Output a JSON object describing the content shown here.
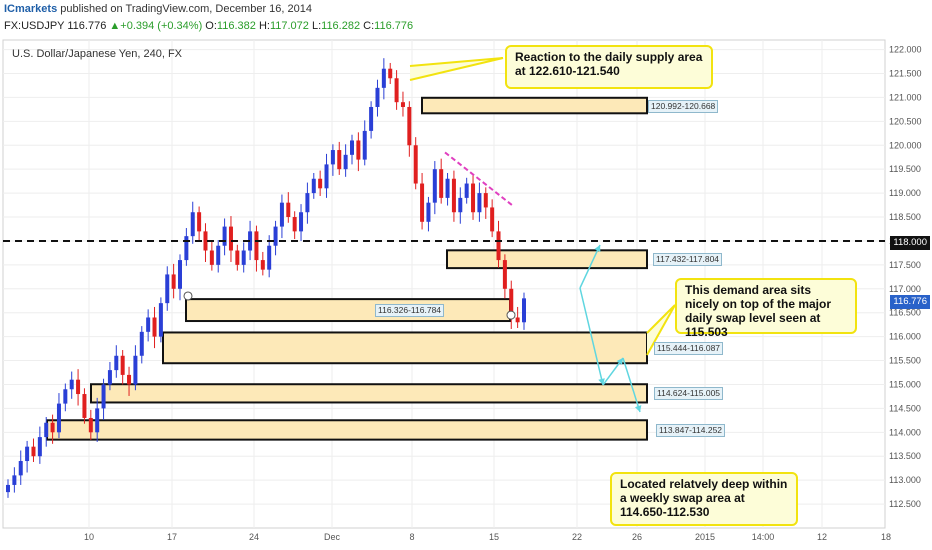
{
  "publisher": {
    "brand": "ICmarkets",
    "text": "published on TradingView.com, December 16, 2014"
  },
  "ohlc_line": {
    "symbol": "FX:USDJPY",
    "last": "116.776",
    "change": "+0.394 (+0.34%)",
    "open_label": "O:",
    "open": "116.382",
    "high_label": "H:",
    "high": "117.072",
    "low_label": "L:",
    "low": "116.282",
    "close_label": "C:",
    "close": "116.776"
  },
  "instrument_title": "U.S. Dollar/Japanese Yen, 240, FX",
  "colors": {
    "bull": "#2a3fd6",
    "bear": "#e01f1f",
    "zone_fill": "#fde9b8",
    "zone_border": "#111111",
    "callout_border": "#f2e30f",
    "arrow": "#5fd6e0",
    "trendline": "#e040c0",
    "grid": "#eeeeee"
  },
  "price_tags": {
    "swap_level": "118.000",
    "current": "116.776"
  },
  "callouts": {
    "supply": "Reaction to the daily supply area at 122.610-121.540",
    "demand": "This demand area sits nicely on top of the major daily swap level seen at 115.503",
    "weekly": "Located relatvely deep within a weekly swap area at 114.650-112.530"
  },
  "chart_data": {
    "type": "candlestick",
    "title": "U.S. Dollar/Japanese Yen, 240, FX",
    "ylim": [
      112.0,
      122.2
    ],
    "y_ticks": [
      "112.500",
      "113.000",
      "113.500",
      "114.000",
      "114.500",
      "115.000",
      "115.500",
      "116.000",
      "116.500",
      "117.000",
      "117.500",
      "118.000",
      "118.500",
      "119.000",
      "119.500",
      "120.000",
      "120.500",
      "121.000",
      "121.500",
      "122.000"
    ],
    "x_ticks": [
      "10",
      "17",
      "24",
      "Dec",
      "8",
      "15",
      "22",
      "26",
      "2015",
      "14:00",
      "12",
      "18"
    ],
    "horizontal_line": {
      "price": 118.0,
      "style": "dashed"
    },
    "zones": [
      {
        "label": "120.992-120.668",
        "low": 120.668,
        "high": 120.992
      },
      {
        "label": "117.432-117.804",
        "low": 117.432,
        "high": 117.804
      },
      {
        "label": "116.326-116.784",
        "low": 116.326,
        "high": 116.784
      },
      {
        "label": "115.444-116.087",
        "low": 115.444,
        "high": 116.087
      },
      {
        "label": "114.624-115.005",
        "low": 114.624,
        "high": 115.005
      },
      {
        "label": "113.847-114.252",
        "low": 113.847,
        "high": 114.252
      }
    ],
    "closes": [
      112.9,
      113.1,
      113.4,
      113.7,
      113.5,
      113.9,
      114.2,
      114.0,
      114.6,
      114.9,
      115.1,
      114.8,
      114.3,
      114.0,
      114.5,
      115.0,
      115.3,
      115.6,
      115.2,
      115.0,
      115.6,
      116.1,
      116.4,
      116.0,
      116.7,
      117.3,
      117.0,
      117.6,
      118.1,
      118.6,
      118.2,
      117.8,
      117.5,
      117.9,
      118.3,
      117.8,
      117.5,
      117.8,
      118.2,
      117.6,
      117.4,
      117.9,
      118.3,
      118.8,
      118.5,
      118.2,
      118.6,
      119.0,
      119.3,
      119.1,
      119.6,
      119.9,
      119.5,
      119.8,
      120.1,
      119.7,
      120.3,
      120.8,
      121.2,
      121.6,
      121.4,
      120.9,
      120.8,
      120.0,
      119.2,
      118.4,
      118.8,
      119.5,
      118.9,
      119.3,
      118.6,
      118.9,
      119.2,
      118.6,
      119.0,
      118.7,
      118.2,
      117.6,
      117.0,
      116.4,
      116.3,
      116.8
    ]
  }
}
